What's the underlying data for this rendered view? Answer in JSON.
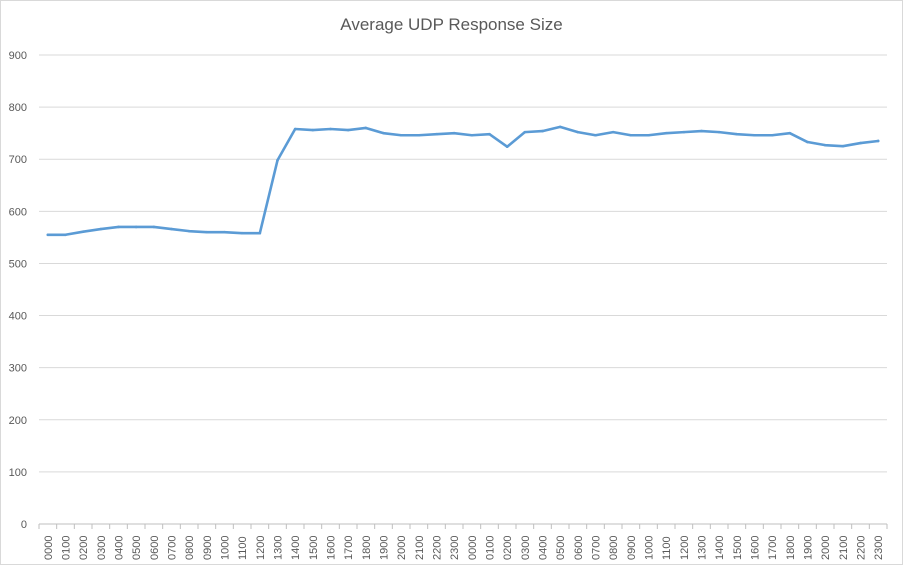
{
  "chart_data": {
    "type": "line",
    "title": "Average UDP Response Size",
    "xlabel": "",
    "ylabel": "",
    "ylim": [
      0,
      900
    ],
    "yticks": [
      0,
      100,
      200,
      300,
      400,
      500,
      600,
      700,
      800,
      900
    ],
    "grid": true,
    "legend": "none",
    "line_color": "#5b9bd5",
    "categories": [
      "0000",
      "0100",
      "0200",
      "0300",
      "0400",
      "0500",
      "0600",
      "0700",
      "0800",
      "0900",
      "1000",
      "1100",
      "1200",
      "1300",
      "1400",
      "1500",
      "1600",
      "1700",
      "1800",
      "1900",
      "2000",
      "2100",
      "2200",
      "2300",
      "0000",
      "0100",
      "0200",
      "0300",
      "0400",
      "0500",
      "0600",
      "0700",
      "0800",
      "0900",
      "1000",
      "1100",
      "1200",
      "1300",
      "1400",
      "1500",
      "1600",
      "1700",
      "1800",
      "1900",
      "2000",
      "2100",
      "2200",
      "2300"
    ],
    "series": [
      {
        "values": [
          555,
          555,
          561,
          566,
          570,
          570,
          570,
          566,
          562,
          560,
          560,
          558,
          558,
          698,
          758,
          756,
          758,
          756,
          760,
          750,
          746,
          746,
          748,
          750,
          746,
          748,
          724,
          752,
          754,
          762,
          752,
          746,
          752,
          746,
          746,
          750,
          752,
          754,
          752,
          748,
          746,
          746,
          750,
          733,
          727,
          725,
          731,
          735
        ]
      }
    ]
  }
}
